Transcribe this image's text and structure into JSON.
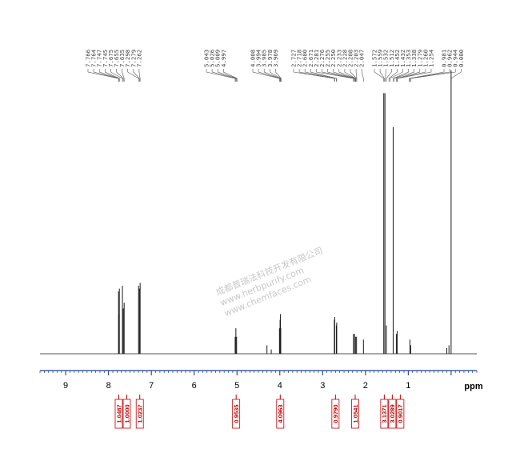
{
  "chart_data": {
    "type": "line",
    "title": "",
    "xlabel": "ppm",
    "ylabel": "",
    "xlim": [
      9.6,
      -0.6
    ],
    "x_ticks": [
      "9",
      "8",
      "7",
      "6",
      "5",
      "4",
      "3",
      "2",
      "1"
    ],
    "colors": {
      "spectrum": "#1a1a1a",
      "axis": "#1f3f8f",
      "integral": "#c00000",
      "peak_label": "#444444"
    },
    "peak_label_groups": [
      [
        "7.766",
        "7.764",
        "7.747",
        "7.745",
        "7.675",
        "7.655",
        "7.635",
        "7.298",
        "7.279",
        "7.262"
      ],
      [
        "5.043",
        "5.026",
        "5.009",
        "4.997"
      ],
      [
        "4.008",
        "3.994",
        "3.985",
        "3.978",
        "3.969"
      ],
      [
        "2.727",
        "2.718",
        "2.680",
        "2.671",
        "2.281",
        "2.276",
        "2.255",
        "2.250",
        "2.233",
        "2.228",
        "2.208",
        "2.203",
        "2.047"
      ],
      [
        "1.572",
        "1.559",
        "1.532",
        "1.512",
        "1.452",
        "1.432",
        "1.353",
        "1.338",
        "1.279",
        "1.260",
        "1.254"
      ],
      [
        "0.981",
        "0.962",
        "0.944",
        "0.000"
      ]
    ],
    "peaks": [
      {
        "x": 7.766,
        "y": 0.22
      },
      {
        "x": 7.755,
        "y": 0.14
      },
      {
        "x": 7.747,
        "y": 0.23
      },
      {
        "x": 7.675,
        "y": 0.24
      },
      {
        "x": 7.655,
        "y": 0.16
      },
      {
        "x": 7.635,
        "y": 0.18
      },
      {
        "x": 7.298,
        "y": 0.24
      },
      {
        "x": 7.279,
        "y": 0.23
      },
      {
        "x": 7.262,
        "y": 0.25
      },
      {
        "x": 5.043,
        "y": 0.06
      },
      {
        "x": 5.026,
        "y": 0.09
      },
      {
        "x": 5.009,
        "y": 0.06
      },
      {
        "x": 4.3,
        "y": 0.03
      },
      {
        "x": 4.2,
        "y": 0.015
      },
      {
        "x": 4.008,
        "y": 0.09
      },
      {
        "x": 3.994,
        "y": 0.12
      },
      {
        "x": 3.985,
        "y": 0.14
      },
      {
        "x": 3.978,
        "y": 0.09
      },
      {
        "x": 2.727,
        "y": 0.12
      },
      {
        "x": 2.718,
        "y": 0.13
      },
      {
        "x": 2.68,
        "y": 0.1
      },
      {
        "x": 2.671,
        "y": 0.11
      },
      {
        "x": 2.281,
        "y": 0.07
      },
      {
        "x": 2.255,
        "y": 0.07
      },
      {
        "x": 2.233,
        "y": 0.06
      },
      {
        "x": 2.208,
        "y": 0.06
      },
      {
        "x": 2.047,
        "y": 0.05
      },
      {
        "x": 1.572,
        "y": 0.92
      },
      {
        "x": 1.545,
        "y": 0.92
      },
      {
        "x": 1.512,
        "y": 0.1
      },
      {
        "x": 1.353,
        "y": 0.8
      },
      {
        "x": 1.279,
        "y": 0.07
      },
      {
        "x": 1.26,
        "y": 0.08
      },
      {
        "x": 0.962,
        "y": 0.05
      },
      {
        "x": 0.944,
        "y": 0.03
      },
      {
        "x": 0.1,
        "y": 0.02
      },
      {
        "x": 0.05,
        "y": 0.03
      },
      {
        "x": 0.0,
        "y": 1.0
      }
    ],
    "integrals": [
      {
        "x": 7.76,
        "value": "1.0487"
      },
      {
        "x": 7.66,
        "value": "1.0000"
      },
      {
        "x": 7.27,
        "value": "1.0237"
      },
      {
        "x": 5.02,
        "value": "0.9535"
      },
      {
        "x": 3.99,
        "value": "4.0963"
      },
      {
        "x": 2.7,
        "value": "0.9790"
      },
      {
        "x": 2.24,
        "value": "1.0541"
      },
      {
        "x": 1.56,
        "value": "3.1371"
      },
      {
        "x": 1.45,
        "value": "3.0289"
      },
      {
        "x": 1.34,
        "value": "0.9017"
      }
    ]
  },
  "watermark": {
    "lines": [
      "成都普瑞法科技开发有限公司",
      "www.herbpurify.com",
      "www.chemfaces.com"
    ]
  }
}
